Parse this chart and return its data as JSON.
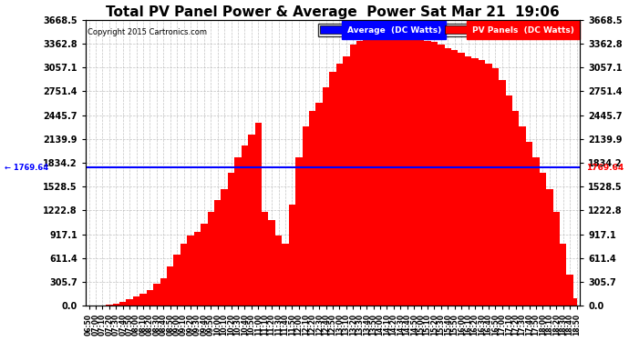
{
  "title": "Total PV Panel Power & Average  Power Sat Mar 21  19:06",
  "copyright": "Copyright 2015 Cartronics.com",
  "legend_avg": "Average  (DC Watts)",
  "legend_pv": "PV Panels  (DC Watts)",
  "avg_value": 1769.64,
  "ymax": 3668.5,
  "yticks": [
    0.0,
    305.7,
    611.4,
    917.1,
    1222.8,
    1528.5,
    1834.2,
    2139.9,
    2445.7,
    2751.4,
    3057.1,
    3362.8,
    3668.5
  ],
  "bg_color": "#ffffff",
  "grid_color": "#aaaaaa",
  "fill_color": "#ff0000",
  "avg_line_color": "#0000ff",
  "title_color": "#000000",
  "copyright_color": "#000000",
  "curve_values": [
    0,
    0,
    5,
    10,
    20,
    50,
    80,
    120,
    150,
    200,
    280,
    350,
    500,
    650,
    800,
    900,
    950,
    1050,
    1200,
    1350,
    1500,
    1700,
    1900,
    2050,
    2200,
    2350,
    1200,
    1100,
    900,
    800,
    1300,
    1900,
    2300,
    2500,
    2600,
    2800,
    3000,
    3100,
    3200,
    3350,
    3400,
    3450,
    3500,
    3520,
    3530,
    3540,
    3520,
    3510,
    3480,
    3450,
    3400,
    3380,
    3350,
    3300,
    3280,
    3250,
    3200,
    3180,
    3150,
    3100,
    3050,
    2900,
    2700,
    2500,
    2300,
    2100,
    1900,
    1700,
    1500,
    1200,
    800,
    400,
    100
  ]
}
